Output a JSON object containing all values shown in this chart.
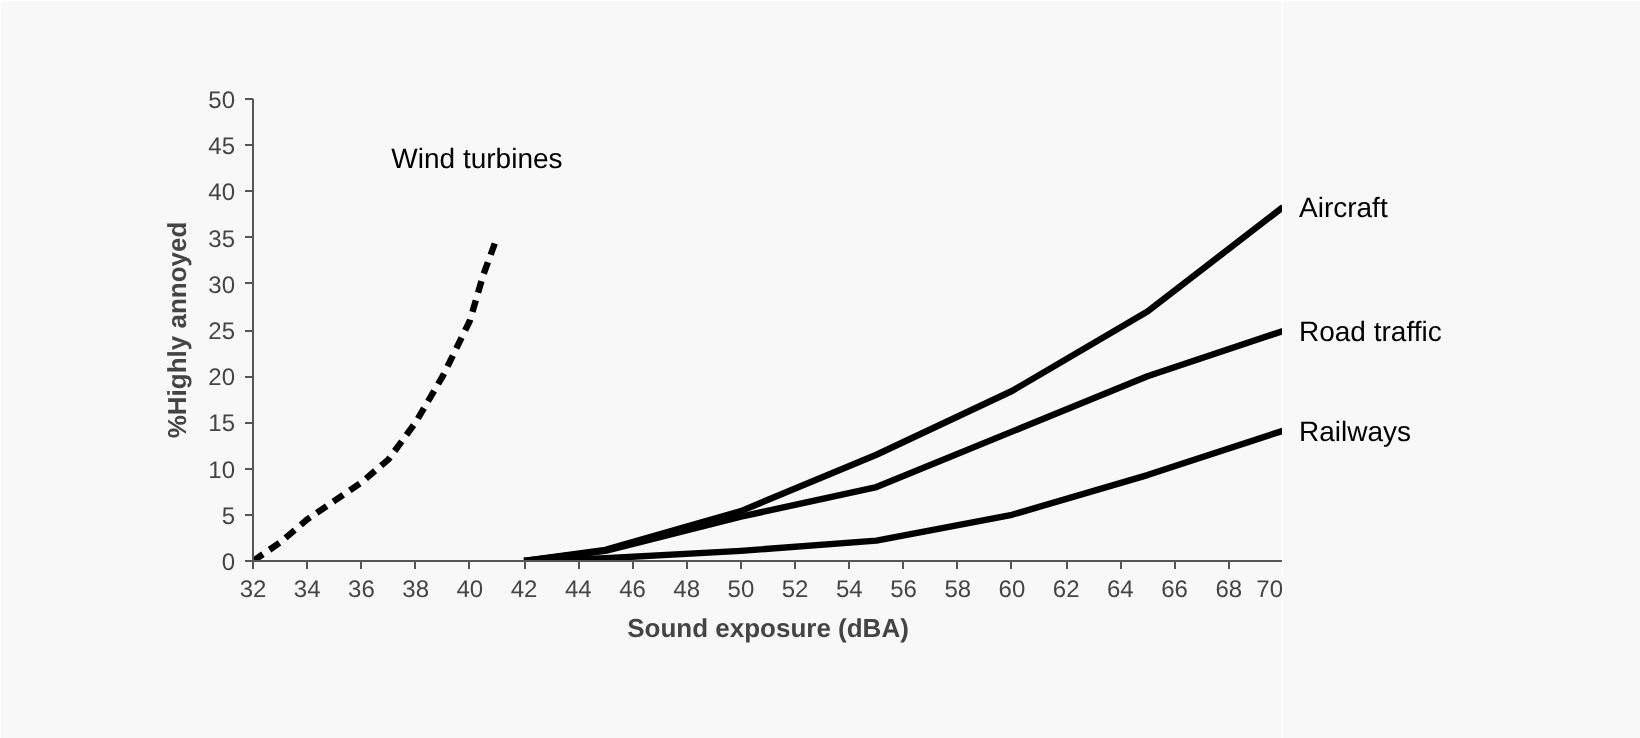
{
  "chart_data": {
    "type": "line",
    "xlabel": "Sound exposure (dBA)",
    "ylabel": "%Highly annoyed",
    "xlim": [
      32,
      70
    ],
    "ylim": [
      0,
      50
    ],
    "xticks": [
      32,
      34,
      36,
      38,
      40,
      42,
      44,
      46,
      48,
      50,
      52,
      54,
      56,
      58,
      60,
      62,
      64,
      66,
      68,
      70
    ],
    "yticks": [
      0,
      5,
      10,
      15,
      20,
      25,
      30,
      35,
      40,
      45,
      50
    ],
    "grid": false,
    "marker": "none",
    "series": [
      {
        "name": "Wind turbines",
        "color": "#000000",
        "line_style": "dashed",
        "x": [
          32,
          33,
          34,
          35,
          36,
          37,
          38,
          39,
          39.5,
          40,
          40.5,
          41
        ],
        "values": [
          0,
          2,
          4.5,
          6.5,
          8.5,
          11,
          15,
          20,
          23,
          26,
          31,
          35
        ]
      },
      {
        "name": "Aircraft",
        "color": "#000000",
        "line_style": "solid",
        "x": [
          42,
          45,
          50,
          55,
          60,
          65,
          70
        ],
        "values": [
          0,
          1.2,
          5.4,
          11.5,
          18.4,
          27,
          38.3
        ]
      },
      {
        "name": "Road traffic",
        "color": "#000000",
        "line_style": "solid",
        "x": [
          42,
          45,
          50,
          55,
          60,
          65,
          70
        ],
        "values": [
          0,
          1.1,
          4.8,
          8,
          14,
          20,
          24.9
        ]
      },
      {
        "name": "Railways",
        "color": "#000000",
        "line_style": "solid",
        "x": [
          42,
          45,
          50,
          55,
          60,
          65,
          70
        ],
        "values": [
          0,
          0.3,
          1.1,
          2.2,
          5,
          9.3,
          14.1
        ]
      }
    ]
  }
}
